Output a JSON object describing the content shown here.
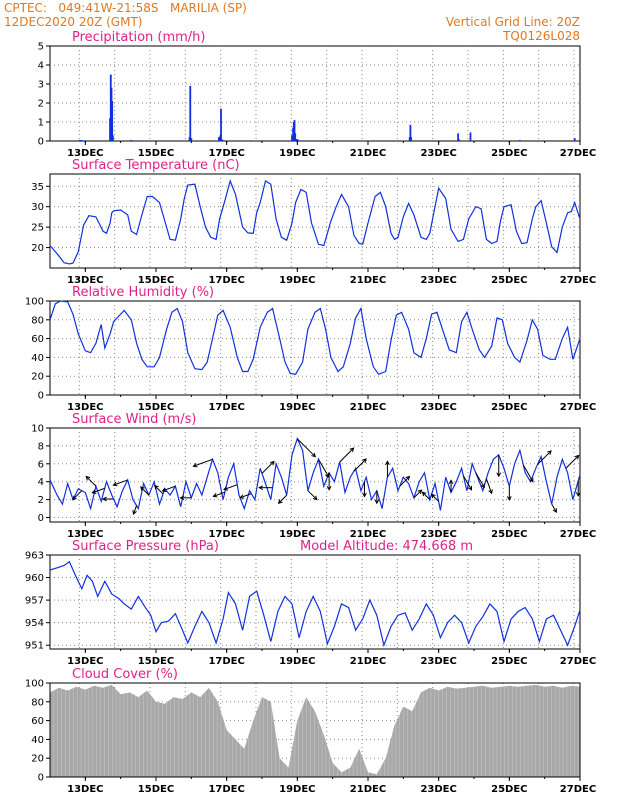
{
  "header": {
    "line1_left": "CPTEC:   049:41W-21:58S   MARILIA (SP)",
    "line2_left": "12DEC2020 20Z (GMT)",
    "line1_right": "Vertical Grid Line: 20Z",
    "line2_right": "TQ0126L028"
  },
  "chart_data": [
    {
      "id": "precip",
      "type": "bar",
      "title": "Precipitation (mm/h)",
      "ylim": [
        0,
        5
      ],
      "yticks": [
        0,
        1,
        2,
        3,
        4,
        5
      ],
      "xticks": [
        "13DEC",
        "15DEC",
        "17DEC",
        "19DEC",
        "21DEC",
        "23DEC",
        "25DEC",
        "27DEC"
      ],
      "x": [
        12.83,
        12.85,
        12.87,
        12.89,
        12.92,
        13.7,
        13.72,
        13.74,
        13.76,
        13.78,
        14.3,
        15.95,
        15.97,
        16.0,
        16.78,
        16.82,
        16.84,
        16.86,
        16.88,
        18.85,
        18.88,
        18.9,
        18.92,
        18.94,
        18.97,
        19.0,
        19.02,
        22.18,
        22.2,
        22.22,
        23.55,
        23.57,
        23.9,
        25.3,
        26.85
      ],
      "values": [
        0.05,
        0.05,
        0.04,
        0.05,
        0.04,
        1.2,
        3.5,
        2.8,
        2.1,
        0.3,
        0.05,
        0.2,
        2.9,
        0.15,
        0.2,
        0.3,
        1.7,
        0.1,
        0.05,
        0.3,
        0.7,
        1.0,
        1.1,
        0.4,
        0.1,
        0.1,
        0.05,
        0.2,
        0.85,
        0.2,
        0.4,
        0.1,
        0.45,
        0.05,
        0.15
      ],
      "colors": {
        "bar": "#1030e0"
      }
    },
    {
      "id": "temp",
      "type": "line",
      "title": "Surface Temperature (nC)",
      "ylim": [
        15,
        38
      ],
      "yticks": [
        20,
        25,
        30,
        35
      ],
      "xticks": [
        "13DEC",
        "15DEC",
        "17DEC",
        "19DEC",
        "21DEC",
        "23DEC",
        "25DEC",
        "27DEC"
      ],
      "x": [
        12.0,
        12.2,
        12.4,
        12.55,
        12.65,
        12.8,
        12.95,
        13.1,
        13.3,
        13.5,
        13.6,
        13.7,
        13.75,
        13.8,
        14.0,
        14.2,
        14.3,
        14.45,
        14.6,
        14.75,
        14.9,
        15.1,
        15.25,
        15.4,
        15.55,
        15.7,
        15.8,
        15.9,
        16.1,
        16.25,
        16.4,
        16.55,
        16.7,
        16.8,
        16.95,
        17.1,
        17.25,
        17.45,
        17.6,
        17.75,
        17.85,
        17.95,
        18.1,
        18.25,
        18.4,
        18.55,
        18.7,
        18.85,
        18.95,
        19.1,
        19.25,
        19.4,
        19.6,
        19.75,
        19.85,
        19.95,
        20.1,
        20.25,
        20.45,
        20.6,
        20.75,
        20.85,
        21.0,
        21.2,
        21.35,
        21.5,
        21.65,
        21.75,
        21.85,
        22.0,
        22.15,
        22.3,
        22.5,
        22.65,
        22.75,
        22.85,
        23.0,
        23.2,
        23.35,
        23.55,
        23.7,
        23.85,
        24.05,
        24.2,
        24.35,
        24.5,
        24.65,
        24.75,
        24.85,
        25.05,
        25.2,
        25.35,
        25.5,
        25.65,
        25.75,
        25.9,
        26.05,
        26.2,
        26.35,
        26.5,
        26.65,
        26.75,
        26.85,
        27.0
      ],
      "values": [
        20.5,
        18.5,
        16.3,
        16.0,
        16.2,
        19.0,
        25.5,
        27.8,
        27.5,
        24.0,
        23.5,
        26.0,
        28.5,
        29.0,
        29.2,
        28.0,
        24.0,
        23.2,
        28.0,
        32.5,
        32.5,
        31.0,
        26.5,
        22.0,
        21.8,
        27.0,
        32.0,
        35.3,
        35.5,
        30.0,
        25.0,
        22.5,
        22.0,
        27.0,
        31.5,
        36.3,
        33.0,
        25.0,
        23.6,
        23.5,
        28.5,
        31.0,
        36.3,
        35.5,
        27.0,
        22.5,
        21.8,
        26.0,
        31.0,
        34.2,
        33.5,
        26.0,
        20.8,
        20.5,
        23.5,
        26.5,
        30.0,
        33.0,
        30.0,
        23.0,
        21.0,
        20.8,
        26.0,
        32.5,
        33.5,
        30.0,
        23.5,
        22.0,
        22.5,
        27.5,
        30.8,
        28.0,
        22.5,
        22.0,
        23.5,
        28.0,
        34.5,
        32.0,
        24.5,
        21.5,
        22.0,
        27.0,
        30.0,
        29.5,
        22.0,
        21.0,
        21.5,
        26.5,
        30.0,
        30.5,
        24.0,
        21.0,
        21.2,
        27.0,
        30.0,
        31.5,
        26.0,
        20.2,
        18.8,
        25.0,
        28.5,
        28.8,
        31.0,
        27.0
      ],
      "colors": {
        "line": "#1030e0"
      }
    },
    {
      "id": "rh",
      "type": "line",
      "title": "Relative Humidity (%)",
      "ylim": [
        0,
        100
      ],
      "yticks": [
        0,
        20,
        40,
        60,
        80,
        100
      ],
      "xticks": [
        "13DEC",
        "15DEC",
        "17DEC",
        "19DEC",
        "21DEC",
        "23DEC",
        "25DEC",
        "27DEC"
      ],
      "x": [
        12.0,
        12.15,
        12.3,
        12.5,
        12.65,
        12.8,
        13.0,
        13.15,
        13.3,
        13.45,
        13.55,
        13.7,
        13.8,
        13.9,
        14.1,
        14.3,
        14.45,
        14.6,
        14.75,
        14.95,
        15.1,
        15.3,
        15.45,
        15.6,
        15.75,
        15.9,
        16.1,
        16.3,
        16.45,
        16.6,
        16.75,
        16.9,
        17.1,
        17.3,
        17.45,
        17.6,
        17.75,
        17.95,
        18.15,
        18.3,
        18.5,
        18.65,
        18.8,
        18.95,
        19.15,
        19.3,
        19.5,
        19.65,
        19.8,
        19.95,
        20.15,
        20.3,
        20.5,
        20.65,
        20.8,
        20.95,
        21.15,
        21.3,
        21.5,
        21.65,
        21.8,
        21.95,
        22.15,
        22.3,
        22.5,
        22.65,
        22.8,
        22.95,
        23.15,
        23.3,
        23.5,
        23.65,
        23.8,
        23.95,
        24.15,
        24.3,
        24.5,
        24.65,
        24.8,
        24.95,
        25.15,
        25.3,
        25.5,
        25.65,
        25.8,
        25.95,
        26.15,
        26.3,
        26.5,
        26.65,
        26.8,
        27.0
      ],
      "values": [
        80,
        97,
        100,
        99,
        86,
        65,
        47,
        45,
        55,
        75,
        50,
        65,
        78,
        82,
        90,
        80,
        55,
        38,
        30,
        30,
        40,
        70,
        88,
        92,
        78,
        45,
        28,
        27,
        35,
        60,
        85,
        90,
        72,
        40,
        25,
        25,
        38,
        72,
        88,
        92,
        60,
        35,
        23,
        22,
        35,
        70,
        88,
        92,
        70,
        40,
        25,
        30,
        55,
        82,
        92,
        60,
        30,
        22,
        25,
        58,
        85,
        88,
        70,
        45,
        40,
        60,
        86,
        88,
        65,
        48,
        45,
        78,
        88,
        70,
        48,
        40,
        52,
        82,
        80,
        55,
        40,
        35,
        58,
        80,
        70,
        42,
        38,
        38,
        60,
        72,
        38,
        60
      ],
      "colors": {
        "line": "#1030e0"
      }
    },
    {
      "id": "wind",
      "type": "line",
      "title": "Surface Wind (m/s)",
      "ylim": [
        -0.5,
        10
      ],
      "yticks": [
        0,
        2,
        4,
        6,
        8,
        10
      ],
      "xticks": [
        "13DEC",
        "15DEC",
        "17DEC",
        "19DEC",
        "21DEC",
        "23DEC",
        "25DEC",
        "27DEC"
      ],
      "x": [
        12.0,
        12.2,
        12.35,
        12.5,
        12.65,
        12.8,
        13.0,
        13.15,
        13.3,
        13.45,
        13.6,
        13.75,
        13.9,
        14.05,
        14.2,
        14.35,
        14.5,
        14.65,
        14.8,
        14.95,
        15.1,
        15.25,
        15.4,
        15.55,
        15.7,
        15.85,
        16.0,
        16.15,
        16.3,
        16.45,
        16.6,
        16.75,
        16.9,
        17.05,
        17.2,
        17.35,
        17.5,
        17.65,
        17.8,
        17.95,
        18.1,
        18.25,
        18.4,
        18.55,
        18.7,
        18.85,
        19.0,
        19.15,
        19.3,
        19.45,
        19.6,
        19.75,
        19.9,
        20.05,
        20.2,
        20.35,
        20.5,
        20.65,
        20.8,
        20.95,
        21.1,
        21.25,
        21.4,
        21.55,
        21.7,
        21.85,
        22.0,
        22.15,
        22.3,
        22.45,
        22.6,
        22.75,
        22.9,
        23.05,
        23.2,
        23.35,
        23.5,
        23.65,
        23.8,
        23.95,
        24.1,
        24.25,
        24.4,
        24.55,
        24.7,
        24.85,
        25.0,
        25.15,
        25.3,
        25.45,
        25.6,
        25.75,
        25.9,
        26.05,
        26.2,
        26.35,
        26.5,
        26.65,
        26.8,
        27.0
      ],
      "values": [
        4.2,
        2.5,
        1.5,
        3.8,
        2.0,
        3.2,
        2.8,
        1.0,
        3.5,
        1.8,
        4.0,
        2.5,
        1.2,
        3.0,
        4.2,
        2.0,
        1.0,
        3.8,
        2.5,
        4.0,
        1.5,
        3.2,
        2.5,
        3.5,
        1.2,
        4.0,
        2.2,
        3.8,
        2.5,
        4.5,
        6.5,
        5.0,
        2.0,
        4.5,
        6.0,
        2.5,
        1.0,
        3.0,
        2.0,
        5.5,
        3.8,
        2.0,
        6.0,
        4.5,
        2.5,
        7.0,
        8.8,
        7.5,
        3.0,
        5.0,
        6.5,
        3.5,
        5.0,
        4.0,
        6.2,
        2.8,
        4.5,
        5.5,
        3.0,
        4.5,
        2.0,
        3.0,
        1.0,
        4.5,
        5.5,
        3.0,
        4.5,
        3.8,
        2.2,
        4.0,
        5.0,
        2.0,
        3.8,
        0.8,
        4.5,
        2.8,
        4.0,
        5.5,
        3.0,
        6.0,
        4.5,
        3.0,
        5.0,
        6.5,
        7.0,
        5.5,
        3.5,
        6.0,
        7.5,
        5.0,
        4.0,
        5.5,
        6.8,
        4.0,
        1.5,
        4.5,
        6.5,
        5.0,
        2.0,
        4.8
      ],
      "arrow_times": [
        12.9,
        13.3,
        13.55,
        13.8,
        14.2,
        14.45,
        14.8,
        15.2,
        15.55,
        16.0,
        16.6,
        16.95,
        17.3,
        17.7,
        18.0,
        18.3,
        18.7,
        19.0,
        19.3,
        19.6,
        19.9,
        20.2,
        20.6,
        20.9,
        21.25,
        21.55,
        21.9,
        22.3,
        22.75,
        23.0,
        23.35,
        23.7,
        24.05,
        24.35,
        24.7,
        25.0,
        25.4,
        25.8,
        26.2,
        26.6,
        26.95
      ],
      "arrow_dirs": [
        225,
        135,
        200,
        180,
        200,
        250,
        135,
        135,
        200,
        180,
        200,
        200,
        200,
        200,
        45,
        180,
        225,
        315,
        315,
        300,
        270,
        45,
        45,
        270,
        270,
        90,
        45,
        45,
        135,
        135,
        90,
        300,
        300,
        290,
        270,
        270,
        300,
        45,
        300,
        45,
        270
      ],
      "colors": {
        "line": "#1030e0",
        "arrow": "#000000"
      }
    },
    {
      "id": "pres",
      "type": "line",
      "title": "Surface Pressure (hPa)",
      "subtitle": "Model Altitude: 474.668 m",
      "ylim": [
        950.5,
        963
      ],
      "yticks": [
        951,
        954,
        957,
        960,
        963
      ],
      "xticks": [
        "13DEC",
        "15DEC",
        "17DEC",
        "19DEC",
        "21DEC",
        "23DEC",
        "25DEC",
        "27DEC"
      ],
      "x": [
        12.0,
        12.2,
        12.4,
        12.55,
        12.7,
        12.9,
        13.05,
        13.2,
        13.35,
        13.55,
        13.75,
        13.95,
        14.1,
        14.3,
        14.5,
        14.7,
        14.85,
        15.0,
        15.15,
        15.35,
        15.55,
        15.75,
        15.9,
        16.1,
        16.3,
        16.5,
        16.7,
        16.9,
        17.05,
        17.25,
        17.45,
        17.65,
        17.85,
        18.05,
        18.25,
        18.45,
        18.65,
        18.85,
        19.05,
        19.25,
        19.45,
        19.65,
        19.85,
        20.05,
        20.25,
        20.45,
        20.65,
        20.85,
        21.05,
        21.25,
        21.45,
        21.65,
        21.85,
        22.05,
        22.25,
        22.45,
        22.65,
        22.85,
        23.05,
        23.25,
        23.45,
        23.65,
        23.85,
        24.05,
        24.25,
        24.45,
        24.65,
        24.85,
        25.05,
        25.25,
        25.45,
        25.65,
        25.85,
        26.05,
        26.25,
        26.45,
        26.65,
        26.85,
        27.0
      ],
      "values": [
        961.0,
        961.3,
        961.6,
        962.1,
        960.5,
        958.5,
        960.3,
        959.5,
        957.5,
        959.5,
        957.8,
        957.2,
        956.5,
        955.8,
        957.5,
        956.0,
        955.0,
        952.8,
        954.0,
        954.2,
        955.2,
        953.0,
        951.3,
        953.5,
        955.5,
        954.0,
        951.3,
        954.5,
        958.0,
        956.5,
        953.0,
        957.5,
        958.2,
        955.0,
        951.5,
        955.5,
        957.5,
        956.5,
        952.0,
        955.5,
        957.5,
        955.5,
        951.2,
        953.5,
        956.5,
        956.0,
        953.0,
        954.5,
        957.0,
        955.0,
        951.0,
        953.5,
        955.0,
        955.3,
        953.0,
        954.5,
        956.5,
        955.0,
        952.0,
        954.0,
        955.0,
        954.0,
        951.3,
        953.5,
        954.8,
        956.5,
        955.5,
        951.5,
        954.5,
        955.5,
        956.0,
        954.5,
        951.5,
        954.5,
        955.0,
        953.0,
        951.0,
        953.5,
        955.7
      ],
      "colors": {
        "line": "#1030e0"
      }
    },
    {
      "id": "cloud",
      "type": "area",
      "title": "Cloud Cover (%)",
      "ylim": [
        0,
        100
      ],
      "yticks": [
        0,
        20,
        40,
        60,
        80,
        100
      ],
      "xticks": [
        "13DEC",
        "15DEC",
        "17DEC",
        "19DEC",
        "21DEC",
        "23DEC",
        "25DEC",
        "27DEC"
      ],
      "x": [
        12.0,
        12.25,
        12.5,
        12.75,
        13.0,
        13.25,
        13.5,
        13.75,
        14.0,
        14.25,
        14.5,
        14.75,
        15.0,
        15.25,
        15.5,
        15.75,
        16.0,
        16.25,
        16.5,
        16.75,
        17.0,
        17.25,
        17.5,
        17.75,
        18.0,
        18.25,
        18.5,
        18.75,
        19.0,
        19.25,
        19.5,
        19.75,
        20.0,
        20.25,
        20.5,
        20.75,
        21.0,
        21.25,
        21.5,
        21.75,
        22.0,
        22.25,
        22.5,
        22.75,
        23.0,
        23.25,
        23.5,
        23.75,
        24.0,
        24.25,
        24.5,
        24.75,
        25.0,
        25.25,
        25.5,
        25.75,
        26.0,
        26.25,
        26.5,
        26.75,
        27.0
      ],
      "values": [
        90,
        95,
        92,
        96,
        93,
        97,
        95,
        98,
        88,
        90,
        85,
        92,
        80,
        78,
        85,
        83,
        90,
        85,
        95,
        80,
        50,
        40,
        30,
        60,
        85,
        80,
        20,
        10,
        60,
        85,
        70,
        45,
        15,
        5,
        10,
        30,
        5,
        3,
        20,
        55,
        75,
        70,
        90,
        95,
        92,
        96,
        94,
        95,
        96,
        97,
        95,
        96,
        97,
        96,
        97,
        98,
        96,
        97,
        95,
        97,
        96
      ],
      "colors": {
        "fill": "#a8a8a8"
      }
    }
  ]
}
